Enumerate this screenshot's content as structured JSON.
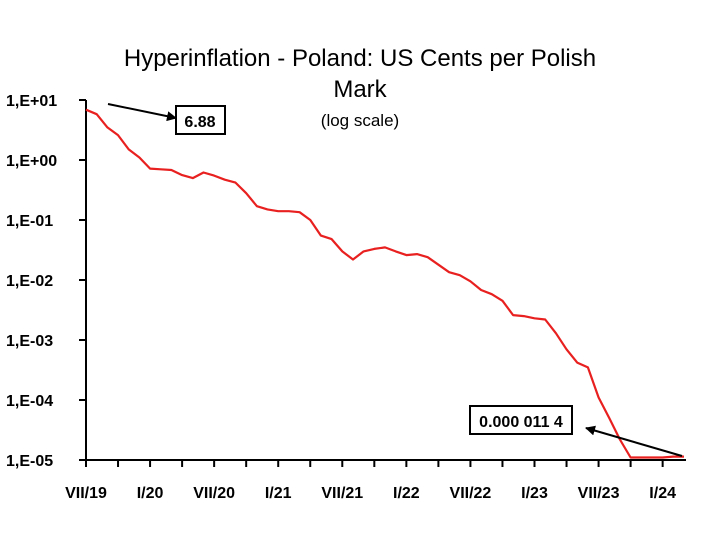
{
  "chart_data": {
    "type": "line",
    "title_line1": "Hyperinflation - Poland: US Cents per Polish",
    "title_line2": "Mark",
    "subtitle": "(log scale)",
    "y_scale": "log",
    "ylim": [
      1e-05,
      10
    ],
    "y_tick_labels": [
      "1,E+01",
      "1,E+00",
      "1,E-01",
      "1,E-02",
      "1,E-03",
      "1,E-04",
      "1,E-05"
    ],
    "y_tick_values": [
      10,
      1,
      0.1,
      0.01,
      0.001,
      0.0001,
      1e-05
    ],
    "x_range_months": [
      0,
      56
    ],
    "x_tick_labels": [
      "VII/19",
      "I/20",
      "VII/20",
      "I/21",
      "VII/21",
      "I/22",
      "VII/22",
      "I/23",
      "VII/23",
      "I/24"
    ],
    "x_tick_months": [
      0,
      6,
      12,
      18,
      24,
      30,
      36,
      42,
      48,
      54
    ],
    "series": [
      {
        "name": "US Cents per Polish Mark",
        "color": "#e8201f",
        "x": [
          0,
          1,
          2,
          3,
          4,
          5,
          6,
          7,
          8,
          9,
          10,
          11,
          12,
          13,
          14,
          15,
          16,
          17,
          18,
          19,
          20,
          21,
          22,
          23,
          24,
          25,
          26,
          27,
          28,
          29,
          30,
          31,
          32,
          33,
          34,
          35,
          36,
          37,
          38,
          39,
          40,
          41,
          42,
          43,
          44,
          45,
          46,
          47,
          48,
          49,
          50,
          51,
          52,
          53,
          54,
          55,
          56
        ],
        "y": [
          6.88,
          5.8,
          3.5,
          2.6,
          1.5,
          1.1,
          0.72,
          0.7,
          0.68,
          0.56,
          0.5,
          0.62,
          0.55,
          0.47,
          0.42,
          0.28,
          0.17,
          0.15,
          0.14,
          0.14,
          0.135,
          0.1,
          0.055,
          0.048,
          0.03,
          0.022,
          0.03,
          0.033,
          0.035,
          0.03,
          0.026,
          0.027,
          0.024,
          0.018,
          0.0135,
          0.012,
          0.0095,
          0.0068,
          0.0058,
          0.0045,
          0.0026,
          0.0025,
          0.0023,
          0.0022,
          0.0013,
          0.0007,
          0.00042,
          0.00035,
          0.00011,
          5e-05,
          2.2e-05,
          1.1e-05,
          1.1e-05,
          1.1e-05,
          1.1e-05,
          1.14e-05,
          1.14e-05
        ]
      }
    ],
    "annotations": [
      {
        "label": "6.88",
        "points_to": "start"
      },
      {
        "label": "0.000 011 4",
        "points_to": "end"
      }
    ]
  }
}
